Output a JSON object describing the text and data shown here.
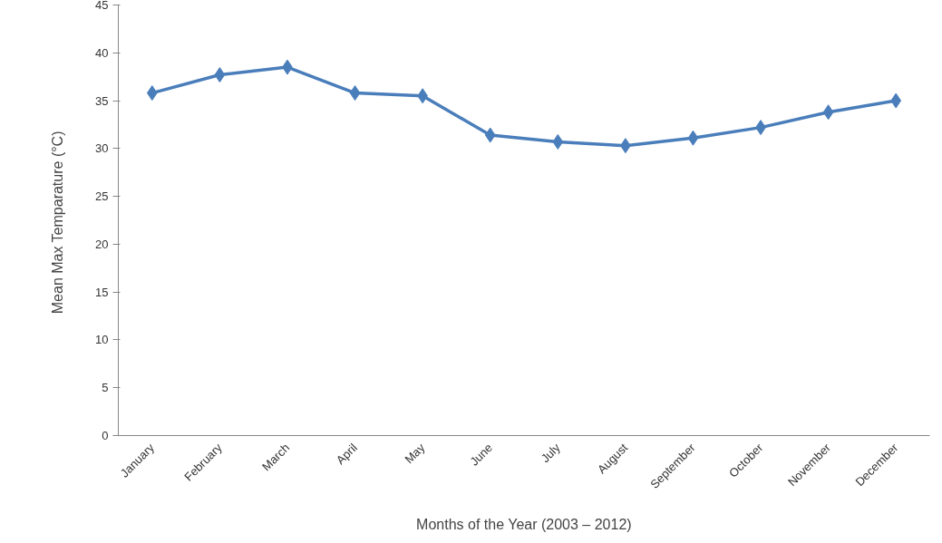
{
  "chart_data": {
    "type": "line",
    "xlabel": "Months of the Year (2003 – 2012)",
    "ylabel": "Mean Max Temparature  (°C)",
    "categories": [
      "January",
      "February",
      "March",
      "April",
      "May",
      "June",
      "July",
      "August",
      "September",
      "October",
      "November",
      "December"
    ],
    "series": [
      {
        "color": "#4a7ebb",
        "values": [
          35.8,
          37.7,
          38.5,
          35.8,
          35.5,
          31.4,
          30.7,
          30.3,
          31.1,
          32.2,
          33.8,
          35.0
        ]
      }
    ],
    "ylim": [
      0,
      45
    ],
    "yticks": [
      0,
      5,
      10,
      15,
      20,
      25,
      30,
      35,
      40,
      45
    ],
    "marker": "diamond",
    "line_style": "solid"
  }
}
